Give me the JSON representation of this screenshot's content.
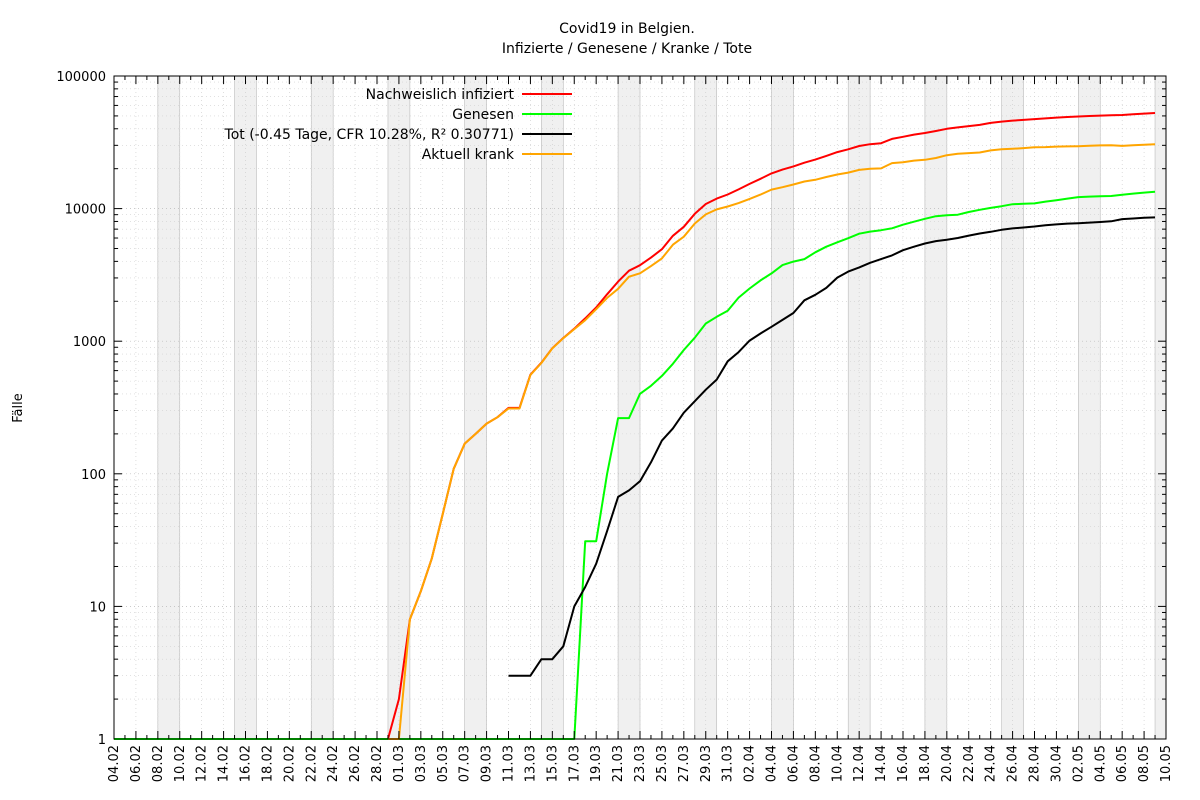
{
  "chart_data": {
    "type": "line",
    "title": "Covid19 in Belgien.",
    "subtitle": "Infizierte / Genesene / Kranke / Tote",
    "xlabel": "",
    "ylabel": "Fälle",
    "yscale": "log",
    "ylim": [
      1,
      100000
    ],
    "xlim": [
      "2020-02-04",
      "2020-05-10"
    ],
    "grid": true,
    "legend_position": "top-left",
    "weekend_shading": true,
    "x_tick_labels": [
      "04.02",
      "06.02",
      "08.02",
      "10.02",
      "12.02",
      "14.02",
      "16.02",
      "18.02",
      "20.02",
      "22.02",
      "24.02",
      "26.02",
      "28.02",
      "01.03",
      "03.03",
      "05.03",
      "07.03",
      "09.03",
      "11.03",
      "13.03",
      "15.03",
      "17.03",
      "19.03",
      "21.03",
      "23.03",
      "25.03",
      "27.03",
      "29.03",
      "31.03",
      "02.04",
      "04.04",
      "06.04",
      "08.04",
      "10.04",
      "12.04",
      "14.04",
      "16.04",
      "18.04",
      "20.04",
      "22.04",
      "24.04",
      "26.04",
      "28.04",
      "30.04",
      "02.05",
      "04.05",
      "06.05",
      "08.05",
      "10.05"
    ],
    "y_tick_labels": [
      "1",
      "10",
      "100",
      "1000",
      "10000",
      "100000"
    ],
    "series": [
      {
        "name": "Nachweislich infiziert",
        "color": "#ff0000",
        "points": [
          [
            "2020-02-04",
            1
          ],
          [
            "2020-02-29",
            1
          ],
          [
            "2020-03-01",
            2
          ],
          [
            "2020-03-02",
            8
          ],
          [
            "2020-03-03",
            13
          ],
          [
            "2020-03-04",
            23
          ],
          [
            "2020-03-05",
            50
          ],
          [
            "2020-03-06",
            109
          ],
          [
            "2020-03-07",
            169
          ],
          [
            "2020-03-08",
            200
          ],
          [
            "2020-03-09",
            239
          ],
          [
            "2020-03-10",
            267
          ],
          [
            "2020-03-11",
            314
          ],
          [
            "2020-03-12",
            314
          ],
          [
            "2020-03-13",
            559
          ],
          [
            "2020-03-14",
            689
          ],
          [
            "2020-03-15",
            886
          ],
          [
            "2020-03-16",
            1058
          ],
          [
            "2020-03-17",
            1243
          ],
          [
            "2020-03-18",
            1486
          ],
          [
            "2020-03-19",
            1795
          ],
          [
            "2020-03-20",
            2257
          ],
          [
            "2020-03-21",
            2815
          ],
          [
            "2020-03-22",
            3401
          ],
          [
            "2020-03-23",
            3743
          ],
          [
            "2020-03-24",
            4269
          ],
          [
            "2020-03-25",
            4937
          ],
          [
            "2020-03-26",
            6235
          ],
          [
            "2020-03-27",
            7284
          ],
          [
            "2020-03-28",
            9134
          ],
          [
            "2020-03-29",
            10836
          ],
          [
            "2020-03-30",
            11899
          ],
          [
            "2020-03-31",
            12775
          ],
          [
            "2020-04-01",
            13964
          ],
          [
            "2020-04-02",
            15348
          ],
          [
            "2020-04-03",
            16770
          ],
          [
            "2020-04-04",
            18431
          ],
          [
            "2020-04-05",
            19691
          ],
          [
            "2020-04-06",
            20814
          ],
          [
            "2020-04-07",
            22194
          ],
          [
            "2020-04-08",
            23403
          ],
          [
            "2020-04-09",
            24983
          ],
          [
            "2020-04-10",
            26667
          ],
          [
            "2020-04-11",
            28018
          ],
          [
            "2020-04-12",
            29647
          ],
          [
            "2020-04-13",
            30589
          ],
          [
            "2020-04-14",
            31119
          ],
          [
            "2020-04-15",
            33573
          ],
          [
            "2020-04-16",
            34809
          ],
          [
            "2020-04-17",
            36138
          ],
          [
            "2020-04-18",
            37183
          ],
          [
            "2020-04-19",
            38496
          ],
          [
            "2020-04-20",
            39983
          ],
          [
            "2020-04-21",
            40956
          ],
          [
            "2020-04-22",
            41889
          ],
          [
            "2020-04-23",
            42797
          ],
          [
            "2020-04-24",
            44293
          ],
          [
            "2020-04-25",
            45325
          ],
          [
            "2020-04-26",
            46134
          ],
          [
            "2020-04-27",
            46687
          ],
          [
            "2020-04-28",
            47334
          ],
          [
            "2020-04-29",
            47859
          ],
          [
            "2020-04-30",
            48519
          ],
          [
            "2020-05-01",
            49032
          ],
          [
            "2020-05-02",
            49517
          ],
          [
            "2020-05-03",
            49906
          ],
          [
            "2020-05-04",
            50267
          ],
          [
            "2020-05-05",
            50509
          ],
          [
            "2020-05-06",
            50781
          ],
          [
            "2020-05-07",
            51420
          ],
          [
            "2020-05-08",
            52011
          ],
          [
            "2020-05-09",
            52596
          ]
        ]
      },
      {
        "name": "Genesen",
        "color": "#00ff00",
        "points": [
          [
            "2020-02-04",
            1
          ],
          [
            "2020-03-17",
            1
          ],
          [
            "2020-03-18",
            31
          ],
          [
            "2020-03-19",
            31
          ],
          [
            "2020-03-20",
            100
          ],
          [
            "2020-03-21",
            263
          ],
          [
            "2020-03-22",
            263
          ],
          [
            "2020-03-23",
            401
          ],
          [
            "2020-03-24",
            461
          ],
          [
            "2020-03-25",
            547
          ],
          [
            "2020-03-26",
            675
          ],
          [
            "2020-03-27",
            858
          ],
          [
            "2020-03-28",
            1063
          ],
          [
            "2020-03-29",
            1359
          ],
          [
            "2020-03-30",
            1527
          ],
          [
            "2020-03-31",
            1696
          ],
          [
            "2020-04-01",
            2132
          ],
          [
            "2020-04-02",
            2495
          ],
          [
            "2020-04-03",
            2872
          ],
          [
            "2020-04-04",
            3247
          ],
          [
            "2020-04-05",
            3751
          ],
          [
            "2020-04-06",
            3986
          ],
          [
            "2020-04-07",
            4157
          ],
          [
            "2020-04-08",
            4681
          ],
          [
            "2020-04-09",
            5164
          ],
          [
            "2020-04-10",
            5568
          ],
          [
            "2020-04-11",
            5986
          ],
          [
            "2020-04-12",
            6463
          ],
          [
            "2020-04-13",
            6707
          ],
          [
            "2020-04-14",
            6868
          ],
          [
            "2020-04-15",
            7107
          ],
          [
            "2020-04-16",
            7562
          ],
          [
            "2020-04-17",
            7961
          ],
          [
            "2020-04-18",
            8384
          ],
          [
            "2020-04-19",
            8757
          ],
          [
            "2020-04-20",
            8895
          ],
          [
            "2020-04-21",
            9002
          ],
          [
            "2020-04-22",
            9433
          ],
          [
            "2020-04-23",
            9800
          ],
          [
            "2020-04-24",
            10122
          ],
          [
            "2020-04-25",
            10417
          ],
          [
            "2020-04-26",
            10785
          ],
          [
            "2020-04-27",
            10878
          ],
          [
            "2020-04-28",
            10943
          ],
          [
            "2020-04-29",
            11283
          ],
          [
            "2020-04-30",
            11576
          ],
          [
            "2020-05-01",
            11892
          ],
          [
            "2020-05-02",
            12211
          ],
          [
            "2020-05-03",
            12309
          ],
          [
            "2020-05-04",
            12378
          ],
          [
            "2020-05-05",
            12441
          ],
          [
            "2020-05-06",
            12731
          ],
          [
            "2020-05-07",
            12980
          ],
          [
            "2020-05-08",
            13201
          ],
          [
            "2020-05-09",
            13411
          ]
        ]
      },
      {
        "name": "Tot (-0.45 Tage, CFR 10.28%, R² 0.30771)",
        "color": "#000000",
        "points": [
          [
            "2020-03-11",
            3
          ],
          [
            "2020-03-12",
            3
          ],
          [
            "2020-03-13",
            3
          ],
          [
            "2020-03-14",
            4
          ],
          [
            "2020-03-15",
            4
          ],
          [
            "2020-03-16",
            5
          ],
          [
            "2020-03-17",
            10
          ],
          [
            "2020-03-18",
            14
          ],
          [
            "2020-03-19",
            21
          ],
          [
            "2020-03-20",
            37
          ],
          [
            "2020-03-21",
            67
          ],
          [
            "2020-03-22",
            75
          ],
          [
            "2020-03-23",
            88
          ],
          [
            "2020-03-24",
            122
          ],
          [
            "2020-03-25",
            178
          ],
          [
            "2020-03-26",
            220
          ],
          [
            "2020-03-27",
            289
          ],
          [
            "2020-03-28",
            353
          ],
          [
            "2020-03-29",
            431
          ],
          [
            "2020-03-30",
            513
          ],
          [
            "2020-03-31",
            705
          ],
          [
            "2020-04-01",
            828
          ],
          [
            "2020-04-02",
            1011
          ],
          [
            "2020-04-03",
            1143
          ],
          [
            "2020-04-04",
            1283
          ],
          [
            "2020-04-05",
            1447
          ],
          [
            "2020-04-06",
            1632
          ],
          [
            "2020-04-07",
            2035
          ],
          [
            "2020-04-08",
            2240
          ],
          [
            "2020-04-09",
            2523
          ],
          [
            "2020-04-10",
            3019
          ],
          [
            "2020-04-11",
            3346
          ],
          [
            "2020-04-12",
            3600
          ],
          [
            "2020-04-13",
            3903
          ],
          [
            "2020-04-14",
            4157
          ],
          [
            "2020-04-15",
            4440
          ],
          [
            "2020-04-16",
            4857
          ],
          [
            "2020-04-17",
            5163
          ],
          [
            "2020-04-18",
            5453
          ],
          [
            "2020-04-19",
            5683
          ],
          [
            "2020-04-20",
            5828
          ],
          [
            "2020-04-21",
            5998
          ],
          [
            "2020-04-22",
            6262
          ],
          [
            "2020-04-23",
            6490
          ],
          [
            "2020-04-24",
            6679
          ],
          [
            "2020-04-25",
            6917
          ],
          [
            "2020-04-26",
            7094
          ],
          [
            "2020-04-27",
            7207
          ],
          [
            "2020-04-28",
            7331
          ],
          [
            "2020-04-29",
            7501
          ],
          [
            "2020-04-30",
            7594
          ],
          [
            "2020-05-01",
            7703
          ],
          [
            "2020-05-02",
            7765
          ],
          [
            "2020-05-03",
            7844
          ],
          [
            "2020-05-04",
            7924
          ],
          [
            "2020-05-05",
            8016
          ],
          [
            "2020-05-06",
            8339
          ],
          [
            "2020-05-07",
            8415
          ],
          [
            "2020-05-08",
            8521
          ],
          [
            "2020-05-09",
            8581
          ]
        ]
      },
      {
        "name": "Aktuell krank",
        "color": "#ffa500",
        "points": [
          [
            "2020-02-29",
            1
          ],
          [
            "2020-03-01",
            1
          ],
          [
            "2020-03-02",
            8
          ],
          [
            "2020-03-03",
            13
          ],
          [
            "2020-03-04",
            23
          ],
          [
            "2020-03-05",
            50
          ],
          [
            "2020-03-06",
            109
          ],
          [
            "2020-03-07",
            169
          ],
          [
            "2020-03-08",
            200
          ],
          [
            "2020-03-09",
            239
          ],
          [
            "2020-03-10",
            267
          ],
          [
            "2020-03-11",
            311
          ],
          [
            "2020-03-12",
            311
          ],
          [
            "2020-03-13",
            556
          ],
          [
            "2020-03-14",
            685
          ],
          [
            "2020-03-15",
            882
          ],
          [
            "2020-03-16",
            1053
          ],
          [
            "2020-03-17",
            1233
          ],
          [
            "2020-03-18",
            1441
          ],
          [
            "2020-03-19",
            1743
          ],
          [
            "2020-03-20",
            2120
          ],
          [
            "2020-03-21",
            2485
          ],
          [
            "2020-03-22",
            3063
          ],
          [
            "2020-03-23",
            3254
          ],
          [
            "2020-03-24",
            3686
          ],
          [
            "2020-03-25",
            4212
          ],
          [
            "2020-03-26",
            5340
          ],
          [
            "2020-03-27",
            6137
          ],
          [
            "2020-03-28",
            7718
          ],
          [
            "2020-03-29",
            9046
          ],
          [
            "2020-03-30",
            9859
          ],
          [
            "2020-03-31",
            10374
          ],
          [
            "2020-04-01",
            11004
          ],
          [
            "2020-04-02",
            11842
          ],
          [
            "2020-04-03",
            12755
          ],
          [
            "2020-04-04",
            13901
          ],
          [
            "2020-04-05",
            14493
          ],
          [
            "2020-04-06",
            15196
          ],
          [
            "2020-04-07",
            16002
          ],
          [
            "2020-04-08",
            16482
          ],
          [
            "2020-04-09",
            17296
          ],
          [
            "2020-04-10",
            18080
          ],
          [
            "2020-04-11",
            18686
          ],
          [
            "2020-04-12",
            19584
          ],
          [
            "2020-04-13",
            19979
          ],
          [
            "2020-04-14",
            20094
          ],
          [
            "2020-04-15",
            22026
          ],
          [
            "2020-04-16",
            22390
          ],
          [
            "2020-04-17",
            23014
          ],
          [
            "2020-04-18",
            23346
          ],
          [
            "2020-04-19",
            24056
          ],
          [
            "2020-04-20",
            25260
          ],
          [
            "2020-04-21",
            25956
          ],
          [
            "2020-04-22",
            26194
          ],
          [
            "2020-04-23",
            26507
          ],
          [
            "2020-04-24",
            27492
          ],
          [
            "2020-04-25",
            27991
          ],
          [
            "2020-04-26",
            28255
          ],
          [
            "2020-04-27",
            28602
          ],
          [
            "2020-04-28",
            29060
          ],
          [
            "2020-04-29",
            29075
          ],
          [
            "2020-04-30",
            29349
          ],
          [
            "2020-05-01",
            29437
          ],
          [
            "2020-05-02",
            29541
          ],
          [
            "2020-05-03",
            29753
          ],
          [
            "2020-05-04",
            29965
          ],
          [
            "2020-05-05",
            30052
          ],
          [
            "2020-05-06",
            29711
          ],
          [
            "2020-05-07",
            30025
          ],
          [
            "2020-05-08",
            30289
          ],
          [
            "2020-05-09",
            30604
          ]
        ]
      }
    ]
  }
}
